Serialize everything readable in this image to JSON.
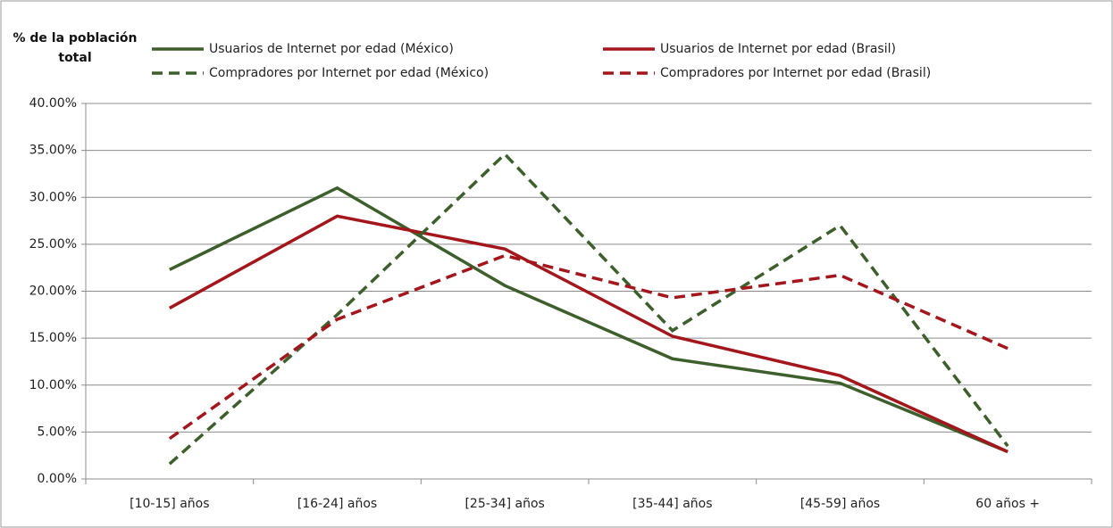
{
  "chart_data": {
    "type": "line",
    "y_label": "% de la población total",
    "categories": [
      "[10-15] años",
      "[16-24] años",
      "[25-34] años",
      "[35-44] años",
      "[45-59] años",
      "60 años +"
    ],
    "series": [
      {
        "name": "Usuarios de Internet por edad (México)",
        "color": "#3d5f2c",
        "style": "solid",
        "values": [
          22.3,
          31.0,
          20.6,
          12.8,
          10.2,
          2.9
        ]
      },
      {
        "name": "Usuarios de Internet por edad (Brasil)",
        "color": "#a3161b",
        "style": "solid",
        "values": [
          18.2,
          28.0,
          24.5,
          15.2,
          11.0,
          2.9
        ]
      },
      {
        "name": "Compradores por Internet por edad (México)",
        "color": "#3d5f2c",
        "style": "dashed",
        "values": [
          1.6,
          17.5,
          34.6,
          15.8,
          27.0,
          3.5
        ]
      },
      {
        "name": "Compradores por Internet por edad (Brasil)",
        "color": "#a3161b",
        "style": "dashed",
        "values": [
          4.3,
          17.0,
          23.8,
          19.3,
          21.7,
          13.9
        ]
      }
    ],
    "ylim": [
      0,
      40
    ],
    "yticks": [
      {
        "value": 0,
        "label": "0.00%"
      },
      {
        "value": 5,
        "label": "5.00%"
      },
      {
        "value": 10,
        "label": "10.00%"
      },
      {
        "value": 15,
        "label": "15.00%"
      },
      {
        "value": 20,
        "label": "20.00%"
      },
      {
        "value": 25,
        "label": "25.00%"
      },
      {
        "value": 30,
        "label": "30.00%"
      },
      {
        "value": 35,
        "label": "35.00%"
      },
      {
        "value": 40,
        "label": "40.00%"
      }
    ],
    "grid": true
  }
}
